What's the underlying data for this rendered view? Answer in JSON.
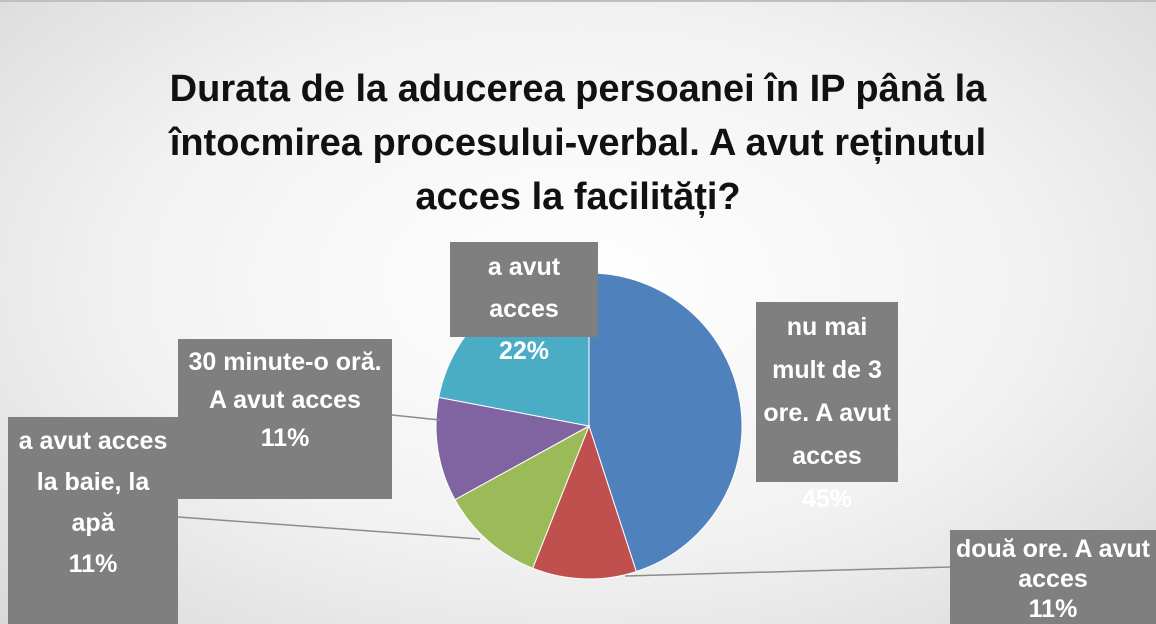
{
  "chart_data": {
    "type": "pie",
    "title": "Durata de la aducerea persoanei în IP până la întocmirea procesului-verbal. A avut reținutul acces la facilități?",
    "categories": [
      "nu mai mult de 3 ore. A avut acces",
      "două ore. A avut acces",
      "a avut acces la baie, la apă",
      "30 minute-o oră. A avut acces",
      "a avut acces"
    ],
    "values": [
      45,
      11,
      11,
      11,
      22
    ],
    "value_labels": [
      "45%",
      "11%",
      "11%",
      "11%",
      "22%"
    ],
    "colors": [
      "#4f81bd",
      "#c0504d",
      "#9bbb59",
      "#8064a2",
      "#4bacc6"
    ]
  }
}
